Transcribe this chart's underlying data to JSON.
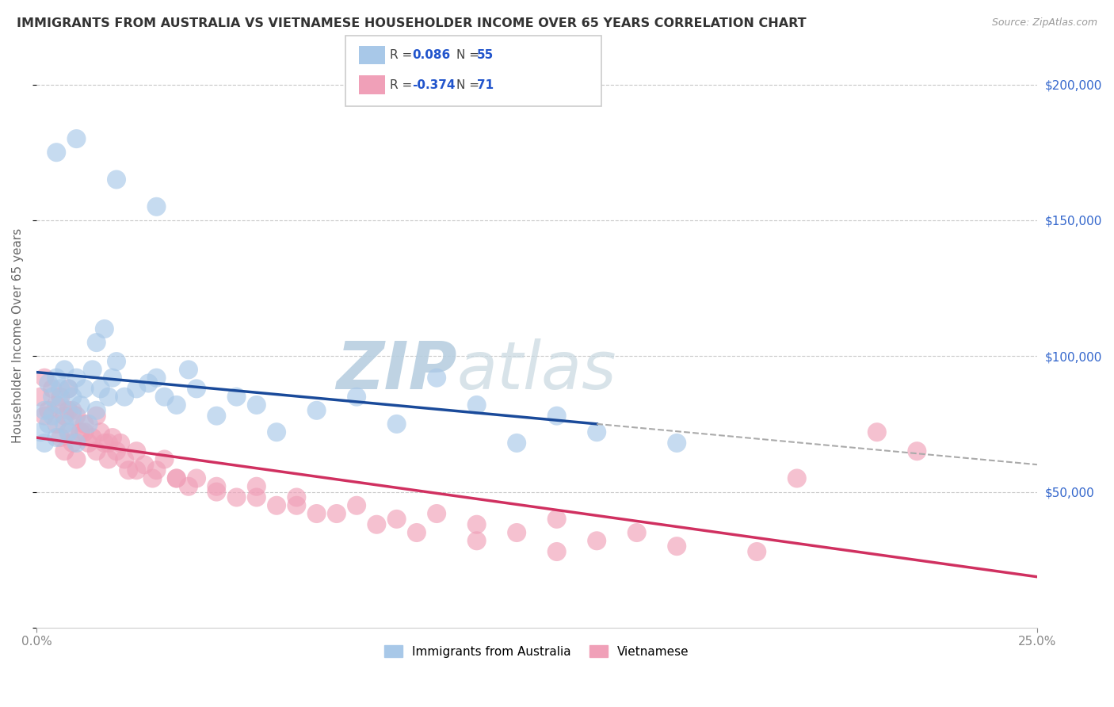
{
  "title": "IMMIGRANTS FROM AUSTRALIA VS VIETNAMESE HOUSEHOLDER INCOME OVER 65 YEARS CORRELATION CHART",
  "source": "Source: ZipAtlas.com",
  "ylabel": "Householder Income Over 65 years",
  "legend_labels": [
    "Immigrants from Australia",
    "Vietnamese"
  ],
  "legend_R": [
    0.086,
    -0.374
  ],
  "legend_N": [
    55,
    71
  ],
  "blue_color": "#a8c8e8",
  "pink_color": "#f0a0b8",
  "blue_line_color": "#1a4a9a",
  "pink_line_color": "#d03060",
  "background_color": "#ffffff",
  "grid_color": "#c8c8c8",
  "watermark_zip": "ZIP",
  "watermark_atlas": "atlas",
  "watermark_color": "#c8d8e8",
  "ylim": [
    0,
    215000
  ],
  "xlim": [
    0.0,
    0.25
  ],
  "yticks": [
    0,
    50000,
    100000,
    150000,
    200000
  ],
  "ytick_labels": [
    "",
    "$50,000",
    "$100,000",
    "$150,000",
    "$200,000"
  ],
  "blue_x": [
    0.001,
    0.002,
    0.002,
    0.003,
    0.003,
    0.004,
    0.004,
    0.005,
    0.005,
    0.006,
    0.006,
    0.007,
    0.007,
    0.008,
    0.008,
    0.009,
    0.009,
    0.01,
    0.01,
    0.011,
    0.012,
    0.013,
    0.014,
    0.015,
    0.015,
    0.016,
    0.017,
    0.018,
    0.019,
    0.02,
    0.022,
    0.025,
    0.028,
    0.03,
    0.032,
    0.035,
    0.038,
    0.04,
    0.045,
    0.05,
    0.055,
    0.06,
    0.07,
    0.08,
    0.09,
    0.1,
    0.11,
    0.12,
    0.13,
    0.14,
    0.005,
    0.01,
    0.02,
    0.03,
    0.16
  ],
  "blue_y": [
    72000,
    68000,
    80000,
    75000,
    90000,
    85000,
    78000,
    92000,
    70000,
    88000,
    82000,
    95000,
    75000,
    88000,
    72000,
    85000,
    78000,
    92000,
    68000,
    82000,
    88000,
    75000,
    95000,
    105000,
    80000,
    88000,
    110000,
    85000,
    92000,
    98000,
    85000,
    88000,
    90000,
    92000,
    85000,
    82000,
    95000,
    88000,
    78000,
    85000,
    82000,
    72000,
    80000,
    85000,
    75000,
    92000,
    82000,
    68000,
    78000,
    72000,
    175000,
    180000,
    165000,
    155000,
    68000
  ],
  "pink_x": [
    0.001,
    0.002,
    0.002,
    0.003,
    0.004,
    0.005,
    0.005,
    0.006,
    0.006,
    0.007,
    0.007,
    0.008,
    0.008,
    0.009,
    0.009,
    0.01,
    0.01,
    0.011,
    0.012,
    0.013,
    0.014,
    0.015,
    0.015,
    0.016,
    0.017,
    0.018,
    0.019,
    0.02,
    0.021,
    0.022,
    0.023,
    0.025,
    0.027,
    0.029,
    0.03,
    0.032,
    0.035,
    0.038,
    0.04,
    0.045,
    0.05,
    0.055,
    0.06,
    0.065,
    0.07,
    0.08,
    0.09,
    0.1,
    0.11,
    0.12,
    0.13,
    0.14,
    0.15,
    0.16,
    0.18,
    0.008,
    0.012,
    0.018,
    0.025,
    0.035,
    0.045,
    0.055,
    0.065,
    0.075,
    0.085,
    0.095,
    0.11,
    0.13,
    0.19,
    0.22,
    0.21
  ],
  "pink_y": [
    85000,
    78000,
    92000,
    80000,
    88000,
    75000,
    82000,
    70000,
    85000,
    78000,
    65000,
    88000,
    72000,
    80000,
    68000,
    78000,
    62000,
    72000,
    75000,
    68000,
    70000,
    65000,
    78000,
    72000,
    68000,
    62000,
    70000,
    65000,
    68000,
    62000,
    58000,
    65000,
    60000,
    55000,
    58000,
    62000,
    55000,
    52000,
    55000,
    50000,
    48000,
    52000,
    45000,
    48000,
    42000,
    45000,
    40000,
    42000,
    38000,
    35000,
    40000,
    32000,
    35000,
    30000,
    28000,
    80000,
    72000,
    68000,
    58000,
    55000,
    52000,
    48000,
    45000,
    42000,
    38000,
    35000,
    32000,
    28000,
    55000,
    65000,
    72000
  ]
}
